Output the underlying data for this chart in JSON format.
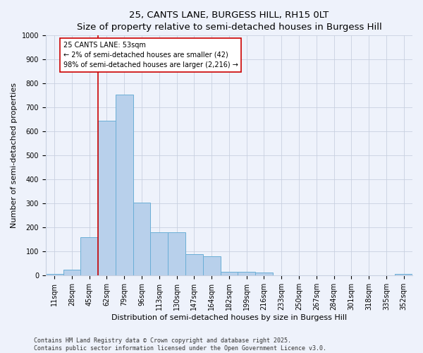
{
  "title1": "25, CANTS LANE, BURGESS HILL, RH15 0LT",
  "title2": "Size of property relative to semi-detached houses in Burgess Hill",
  "xlabel": "Distribution of semi-detached houses by size in Burgess Hill",
  "ylabel": "Number of semi-detached properties",
  "categories": [
    "11sqm",
    "28sqm",
    "45sqm",
    "62sqm",
    "79sqm",
    "96sqm",
    "113sqm",
    "130sqm",
    "147sqm",
    "164sqm",
    "182sqm",
    "199sqm",
    "216sqm",
    "233sqm",
    "250sqm",
    "267sqm",
    "284sqm",
    "301sqm",
    "318sqm",
    "335sqm",
    "352sqm"
  ],
  "values": [
    7,
    25,
    160,
    645,
    755,
    305,
    180,
    180,
    90,
    80,
    15,
    15,
    12,
    0,
    0,
    0,
    0,
    0,
    0,
    0,
    7
  ],
  "bar_color": "#b8d0eb",
  "bar_edge_color": "#6aaed6",
  "vline_x_index": 2,
  "vline_color": "#cc0000",
  "annotation_text": "25 CANTS LANE: 53sqm\n← 2% of semi-detached houses are smaller (42)\n98% of semi-detached houses are larger (2,216) →",
  "annotation_box_color": "#ffffff",
  "annotation_box_edge": "#cc0000",
  "ylim": [
    0,
    1000
  ],
  "yticks": [
    0,
    100,
    200,
    300,
    400,
    500,
    600,
    700,
    800,
    900,
    1000
  ],
  "footnote": "Contains HM Land Registry data © Crown copyright and database right 2025.\nContains public sector information licensed under the Open Government Licence v3.0.",
  "bg_color": "#eef2fb",
  "grid_color": "#c8d0e0",
  "title_fontsize": 9.5,
  "subtitle_fontsize": 8.5,
  "axis_label_fontsize": 8,
  "tick_fontsize": 7,
  "annotation_fontsize": 7,
  "footnote_fontsize": 6
}
